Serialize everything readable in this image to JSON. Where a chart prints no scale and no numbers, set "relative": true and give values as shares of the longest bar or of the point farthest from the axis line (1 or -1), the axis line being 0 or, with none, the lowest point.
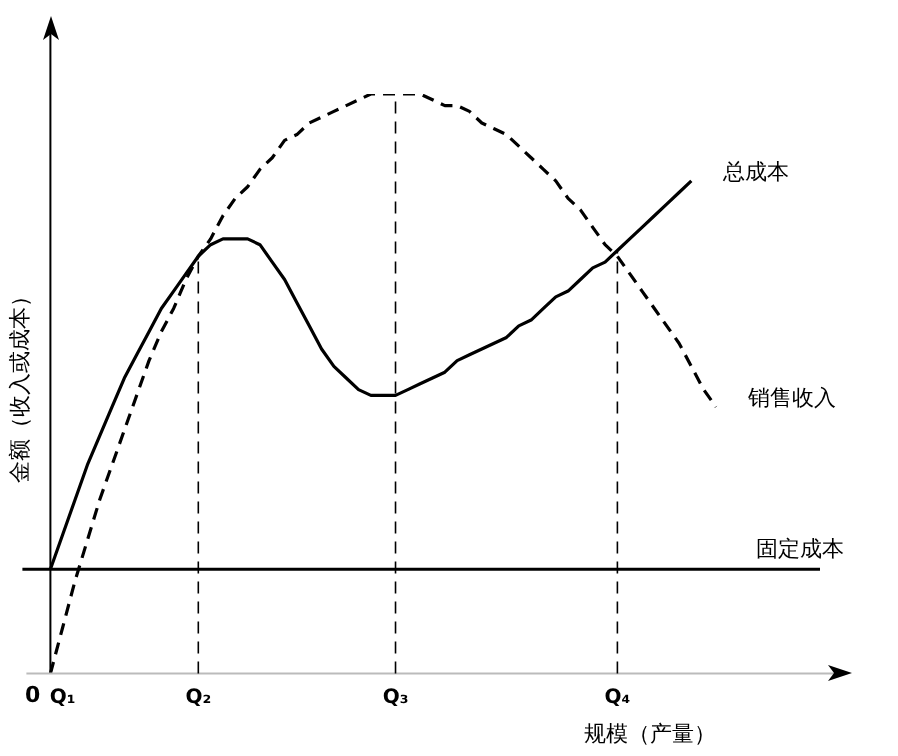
{
  "chart_data": {
    "type": "line",
    "relative": true,
    "ylabel": "金额（收入或成本）",
    "xlabel": "规模（产量）",
    "marker": "none",
    "categories": [
      null,
      "Q₁",
      null,
      null,
      null,
      null,
      null,
      null,
      null,
      null,
      null,
      null,
      "Q₂",
      null,
      null,
      null,
      null,
      null,
      null,
      null,
      null,
      null,
      null,
      null,
      null,
      null,
      null,
      null,
      "Q₃",
      null,
      null,
      null,
      null,
      null,
      null,
      null,
      null,
      null,
      null,
      null,
      null,
      null,
      null,
      null,
      null,
      null,
      "Q₄",
      null,
      null,
      null,
      null,
      null,
      null,
      null,
      null
    ],
    "series": [
      {
        "name": "总成本",
        "color": "#000000",
        "line_style": "solid",
        "values": [
          0.18,
          0.24,
          0.3,
          0.36,
          0.41,
          0.46,
          0.51,
          0.55,
          0.59,
          0.63,
          0.66,
          0.69,
          0.72,
          0.74,
          0.75,
          0.75,
          0.75,
          0.74,
          0.71,
          0.68,
          0.64,
          0.6,
          0.56,
          0.53,
          0.51,
          0.49,
          0.48,
          0.48,
          0.48,
          0.49,
          0.5,
          0.51,
          0.52,
          0.54,
          0.55,
          0.56,
          0.57,
          0.58,
          0.6,
          0.61,
          0.63,
          0.65,
          0.66,
          0.68,
          0.7,
          0.71,
          0.73,
          0.75,
          0.77,
          0.79,
          0.81,
          0.83,
          0.85,
          null,
          null
        ]
      },
      {
        "name": "销售收入",
        "color": "#000000",
        "line_style": "dashed",
        "values": [
          0,
          0.08,
          0.16,
          0.23,
          0.3,
          0.36,
          0.42,
          0.48,
          0.54,
          0.59,
          0.63,
          0.68,
          0.72,
          0.75,
          0.79,
          0.82,
          0.84,
          0.87,
          0.89,
          0.92,
          0.93,
          0.95,
          0.96,
          0.97,
          0.98,
          0.99,
          1.0,
          1.0,
          1.0,
          1.0,
          1.0,
          0.99,
          0.98,
          0.98,
          0.97,
          0.95,
          0.94,
          0.93,
          0.91,
          0.89,
          0.87,
          0.85,
          0.82,
          0.8,
          0.77,
          0.74,
          0.72,
          0.69,
          0.66,
          0.63,
          0.6,
          0.57,
          0.53,
          0.49,
          0.46
        ]
      }
    ],
    "ref_lines": [
      {
        "axis": "y",
        "value": 0.18,
        "label": "固定成本",
        "line_style": "solid"
      },
      {
        "axis": "x",
        "value": "Q₂",
        "line_style": "dashed"
      },
      {
        "axis": "x",
        "value": "Q₃",
        "line_style": "dashed"
      },
      {
        "axis": "x",
        "value": "Q₄",
        "line_style": "dashed"
      }
    ],
    "annotations": [
      "0"
    ]
  }
}
